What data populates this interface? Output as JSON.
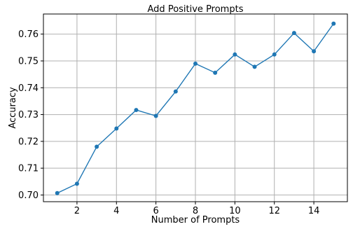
{
  "chart_data": {
    "type": "line",
    "title": "Add Positive Prompts",
    "xlabel": "Number of Prompts",
    "ylabel": "Accuracy",
    "xlim": [
      0.3,
      15.7
    ],
    "ylim": [
      0.6975,
      0.7675
    ],
    "x_ticks": [
      2,
      4,
      6,
      8,
      10,
      12,
      14
    ],
    "y_ticks": [
      0.7,
      0.71,
      0.72,
      0.73,
      0.74,
      0.75,
      0.76
    ],
    "y_tick_labels": [
      "0.70",
      "0.71",
      "0.72",
      "0.73",
      "0.74",
      "0.75",
      "0.76"
    ],
    "grid": true,
    "series": [
      {
        "x": [
          1,
          2,
          3,
          4,
          5,
          6,
          7,
          8,
          9,
          10,
          11,
          12,
          13,
          14,
          15
        ],
        "y": [
          0.7007,
          0.7042,
          0.718,
          0.7248,
          0.7317,
          0.7295,
          0.7386,
          0.749,
          0.7456,
          0.7524,
          0.7478,
          0.7524,
          0.7604,
          0.7536,
          0.7639
        ],
        "color": "#1f77b4",
        "marker": "circle"
      }
    ]
  }
}
